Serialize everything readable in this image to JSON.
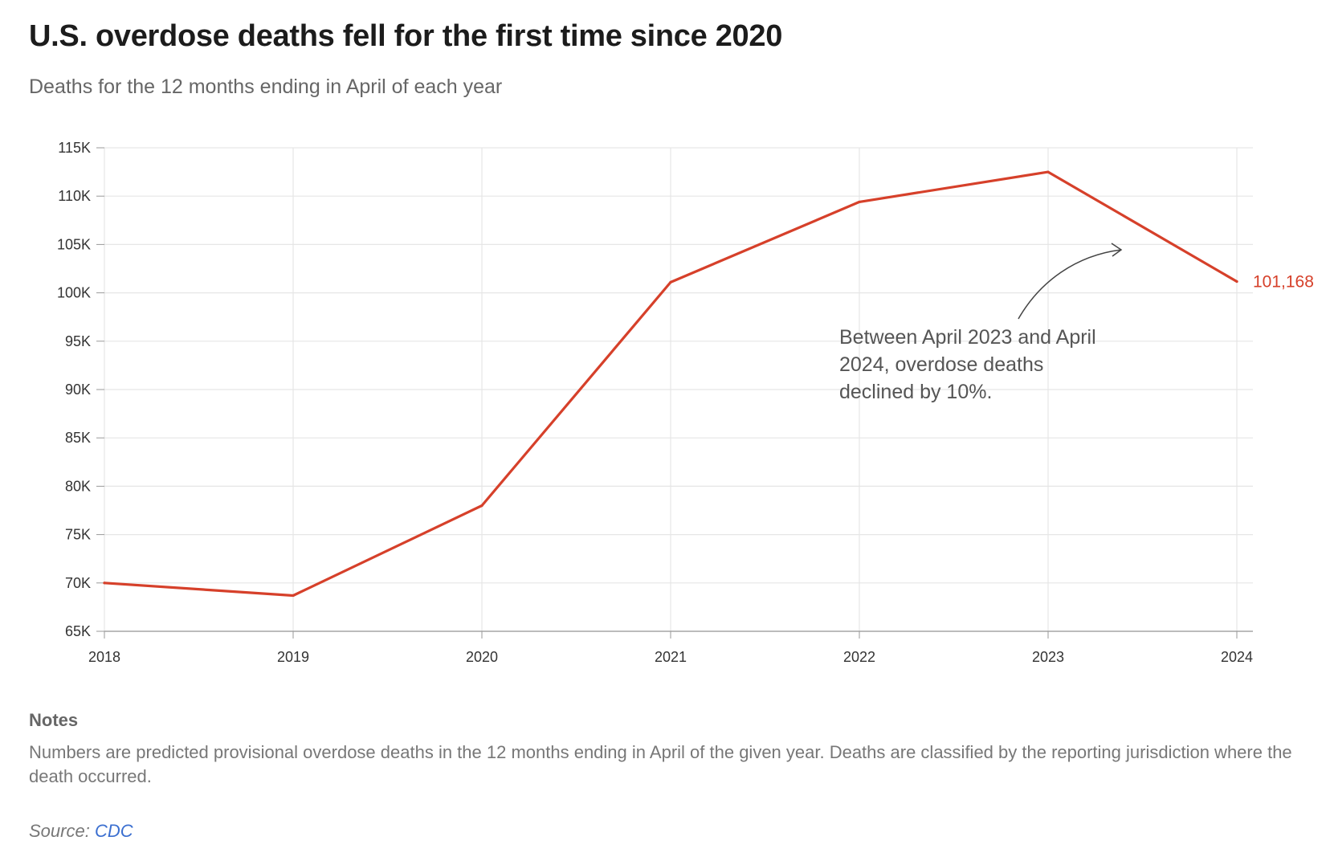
{
  "title": "U.S. overdose deaths fell for the first time since 2020",
  "subtitle": "Deaths for the 12 months ending in April of each year",
  "notes_heading": "Notes",
  "notes_text": "Numbers are predicted provisional overdose deaths in the 12 months ending in April of the given year. Deaths are classified by the reporting jurisdiction where the death occurred.",
  "source_label": "Source: ",
  "source_name": "CDC",
  "colors": {
    "line": "#d6402a",
    "grid": "#e6e6e6",
    "axis": "#999999"
  },
  "chart_data": {
    "type": "line",
    "title": "U.S. overdose deaths fell for the first time since 2020",
    "subtitle": "Deaths for the 12 months ending in April of each year",
    "xlabel": "",
    "ylabel": "",
    "x": [
      "2018",
      "2019",
      "2020",
      "2021",
      "2022",
      "2023",
      "2024"
    ],
    "series": [
      {
        "name": "Overdose deaths",
        "values": [
          70000,
          68700,
          78000,
          101100,
          109400,
          112500,
          101168
        ]
      }
    ],
    "ylim": [
      65000,
      115000
    ],
    "yticks": [
      65000,
      70000,
      75000,
      80000,
      85000,
      90000,
      95000,
      100000,
      105000,
      110000,
      115000
    ],
    "ytick_labels": [
      "65K",
      "70K",
      "75K",
      "80K",
      "85K",
      "90K",
      "95K",
      "100K",
      "105K",
      "110K",
      "115K"
    ],
    "grid": true,
    "end_label": "101,168",
    "annotation": [
      "Between April 2023 and April",
      "2024, overdose deaths",
      "declined by 10%."
    ]
  }
}
